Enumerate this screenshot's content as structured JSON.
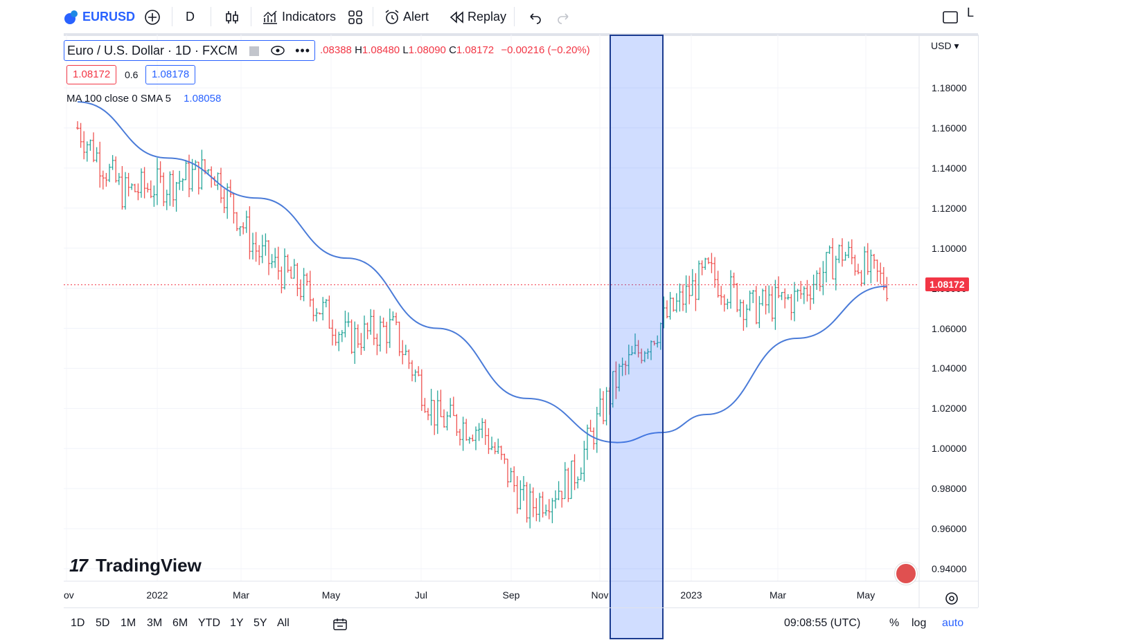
{
  "toolbar": {
    "symbol": "EURUSD",
    "interval": "D",
    "indicators_label": "Indicators",
    "alert_label": "Alert",
    "replay_label": "Replay",
    "right_partial": "L"
  },
  "legend": {
    "title": "Euro / U.S. Dollar · 1D · FXCM",
    "ohlc_open": ".08388",
    "ohlc_high_label": "H",
    "ohlc_high": "1.08480",
    "ohlc_low_label": "L",
    "ohlc_low": "1.08090",
    "ohlc_close_label": "C",
    "ohlc_close": "1.08172",
    "ohlc_change": "−0.00216 (−0.20%)",
    "bid": "1.08172",
    "spread": "0.6",
    "ask": "1.08178",
    "ma_label": "MA 100 close 0 SMA 5",
    "ma_value": "1.08058"
  },
  "axis": {
    "currency": "USD",
    "last_price": "1.08172"
  },
  "brand": {
    "logo_text": "TradingView"
  },
  "bottom": {
    "ranges": [
      "1D",
      "5D",
      "1M",
      "3M",
      "6M",
      "YTD",
      "1Y",
      "5Y",
      "All"
    ],
    "clock": "09:08:55 (UTC)",
    "percent": "%",
    "log": "log",
    "auto": "auto"
  },
  "colors": {
    "up": "#26a69a",
    "down": "#ef5350",
    "ma": "#4a7bd8",
    "highlight": "#2962ff"
  },
  "chart_data": {
    "type": "line",
    "ylim": [
      0.93,
      1.19
    ],
    "y_ticks": [
      "1.18000",
      "1.16000",
      "1.14000",
      "1.12000",
      "1.10000",
      "1.08000",
      "1.06000",
      "1.04000",
      "1.02000",
      "1.00000",
      "0.98000",
      "0.96000",
      "0.94000"
    ],
    "x_ticks": [
      "ov",
      "2022",
      "Mar",
      "May",
      "Jul",
      "Sep",
      "Nov",
      "2023",
      "Mar",
      "May"
    ],
    "series": [
      {
        "name": "EURUSD",
        "x": [
          "2021-11",
          "2021-12",
          "2022-01",
          "2022-02",
          "2022-03",
          "2022-04",
          "2022-05",
          "2022-06",
          "2022-07",
          "2022-08",
          "2022-09",
          "2022-10",
          "2022-11",
          "2022-12",
          "2023-01",
          "2023-02",
          "2023-03",
          "2023-04",
          "2023-05"
        ],
        "values": [
          1.16,
          1.128,
          1.132,
          1.14,
          1.098,
          1.08,
          1.055,
          1.06,
          1.015,
          1.01,
          0.97,
          0.985,
          1.035,
          1.063,
          1.088,
          1.07,
          1.075,
          1.098,
          1.082
        ]
      },
      {
        "name": "MA 100 close 0 SMA 5",
        "x": [
          "2021-11",
          "2022-01",
          "2022-03",
          "2022-05",
          "2022-07",
          "2022-09",
          "2022-11",
          "2022-12",
          "2023-01",
          "2023-03",
          "2023-05"
        ],
        "values": [
          1.173,
          1.145,
          1.125,
          1.095,
          1.06,
          1.025,
          1.003,
          1.008,
          1.017,
          1.055,
          1.081
        ]
      }
    ]
  }
}
